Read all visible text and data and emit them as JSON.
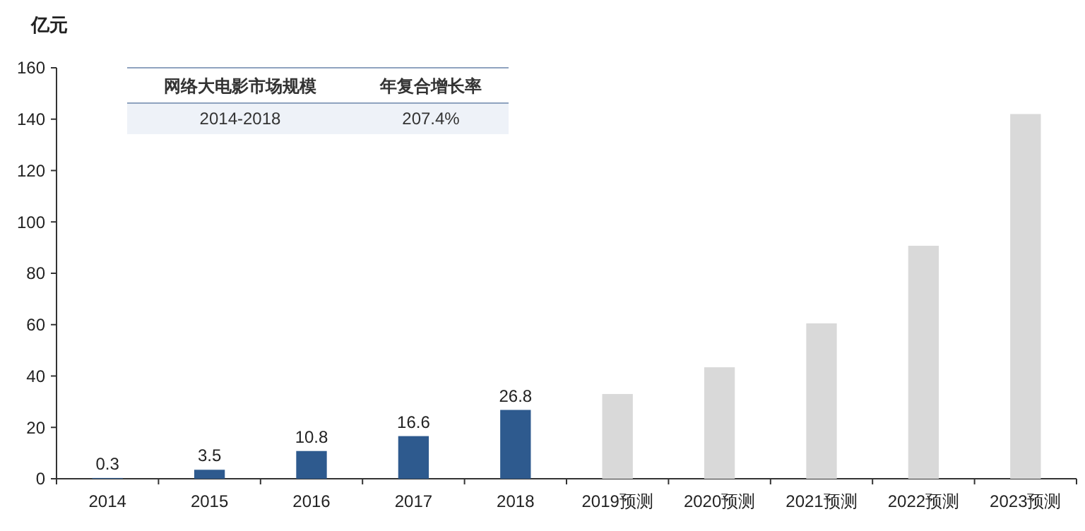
{
  "chart_data": {
    "type": "bar",
    "ylabel": "亿元",
    "categories": [
      "2014",
      "2015",
      "2016",
      "2017",
      "2018",
      "2019预测",
      "2020预测",
      "2021预测",
      "2022预测",
      "2023预测"
    ],
    "values": [
      0.3,
      3.5,
      10.8,
      16.6,
      26.8,
      33,
      43.4,
      60.5,
      90.7,
      142
    ],
    "value_labels": [
      "0.3",
      "3.5",
      "10.8",
      "16.6",
      "26.8",
      null,
      null,
      null,
      null,
      null
    ],
    "colors": [
      "#2e5a8e",
      "#2e5a8e",
      "#2e5a8e",
      "#2e5a8e",
      "#2e5a8e",
      "#d9d9d9",
      "#d9d9d9",
      "#d9d9d9",
      "#d9d9d9",
      "#d9d9d9"
    ],
    "ylim": [
      0,
      160
    ],
    "yticks": [
      0,
      20,
      40,
      60,
      80,
      100,
      120,
      140,
      160
    ],
    "grid": false,
    "annotations": [
      "网络大电影市场规模",
      "年复合增长率",
      "2014-2018",
      "207.4%"
    ]
  }
}
